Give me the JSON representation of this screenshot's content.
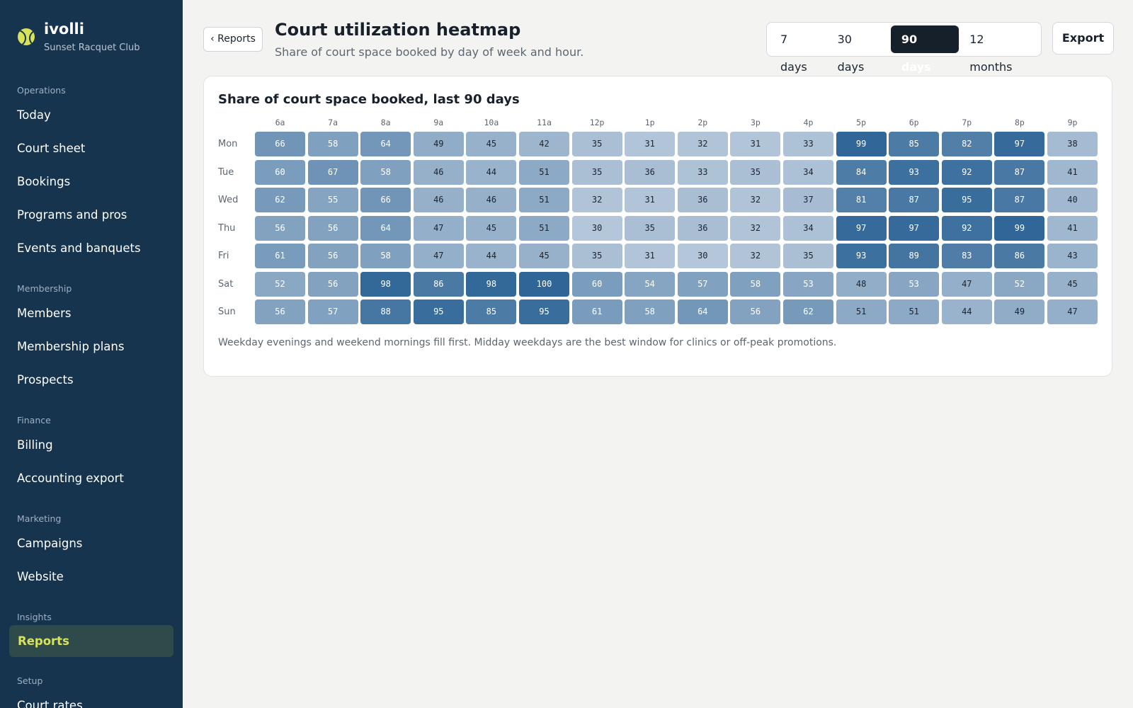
{
  "brand": {
    "name": "ivolli",
    "club": "Sunset Racquet Club",
    "logo_icon": "tennis-ball-icon",
    "accent": "#d7e35a"
  },
  "nav": [
    {
      "section": "Operations",
      "items": [
        "Today",
        "Court sheet",
        "Bookings",
        "Programs and pros",
        "Events and banquets"
      ]
    },
    {
      "section": "Membership",
      "items": [
        "Members",
        "Membership plans",
        "Prospects"
      ]
    },
    {
      "section": "Finance",
      "items": [
        "Billing",
        "Accounting export"
      ]
    },
    {
      "section": "Marketing",
      "items": [
        "Campaigns",
        "Website"
      ]
    },
    {
      "section": "Insights",
      "items": [
        "Reports"
      ]
    },
    {
      "section": "Setup",
      "items": [
        "Court rates"
      ]
    }
  ],
  "active_nav": "Reports",
  "header": {
    "back_label": "‹ Reports",
    "title": "Court utilization heatmap",
    "subtitle": "Share of court space booked by day of week and hour.",
    "ranges": [
      "7 days",
      "30 days",
      "90 days",
      "12 months"
    ],
    "active_range": "90 days",
    "export_label": "Export"
  },
  "card": {
    "title": "Share of court space booked, last 90 days",
    "caption": "Weekday evenings and weekend mornings fill first. Midday weekdays are the best window for clinics or off-peak promotions."
  },
  "chart_data": {
    "type": "heatmap",
    "title": "Share of court space booked, last 90 days",
    "x": [
      "6a",
      "7a",
      "8a",
      "9a",
      "10a",
      "11a",
      "12p",
      "1p",
      "2p",
      "3p",
      "4p",
      "5p",
      "6p",
      "7p",
      "8p",
      "9p"
    ],
    "y": [
      "Mon",
      "Tue",
      "Wed",
      "Thu",
      "Fri",
      "Sat",
      "Sun"
    ],
    "values": [
      [
        66,
        58,
        64,
        49,
        45,
        42,
        35,
        31,
        32,
        31,
        33,
        99,
        85,
        82,
        97,
        38
      ],
      [
        60,
        67,
        58,
        46,
        44,
        51,
        35,
        36,
        33,
        35,
        34,
        84,
        93,
        92,
        87,
        41
      ],
      [
        62,
        55,
        66,
        46,
        46,
        51,
        32,
        31,
        36,
        32,
        37,
        81,
        87,
        95,
        87,
        40
      ],
      [
        56,
        56,
        64,
        47,
        45,
        51,
        30,
        35,
        36,
        32,
        34,
        97,
        97,
        92,
        99,
        41
      ],
      [
        61,
        56,
        58,
        47,
        44,
        45,
        35,
        31,
        30,
        32,
        35,
        93,
        89,
        83,
        86,
        43
      ],
      [
        52,
        56,
        98,
        86,
        98,
        100,
        60,
        54,
        57,
        58,
        53,
        48,
        53,
        47,
        52,
        45
      ],
      [
        56,
        57,
        88,
        95,
        85,
        95,
        61,
        58,
        64,
        56,
        62,
        51,
        51,
        44,
        49,
        47
      ]
    ],
    "color_low": "#b4c6d9",
    "color_high": "#2f6697"
  }
}
